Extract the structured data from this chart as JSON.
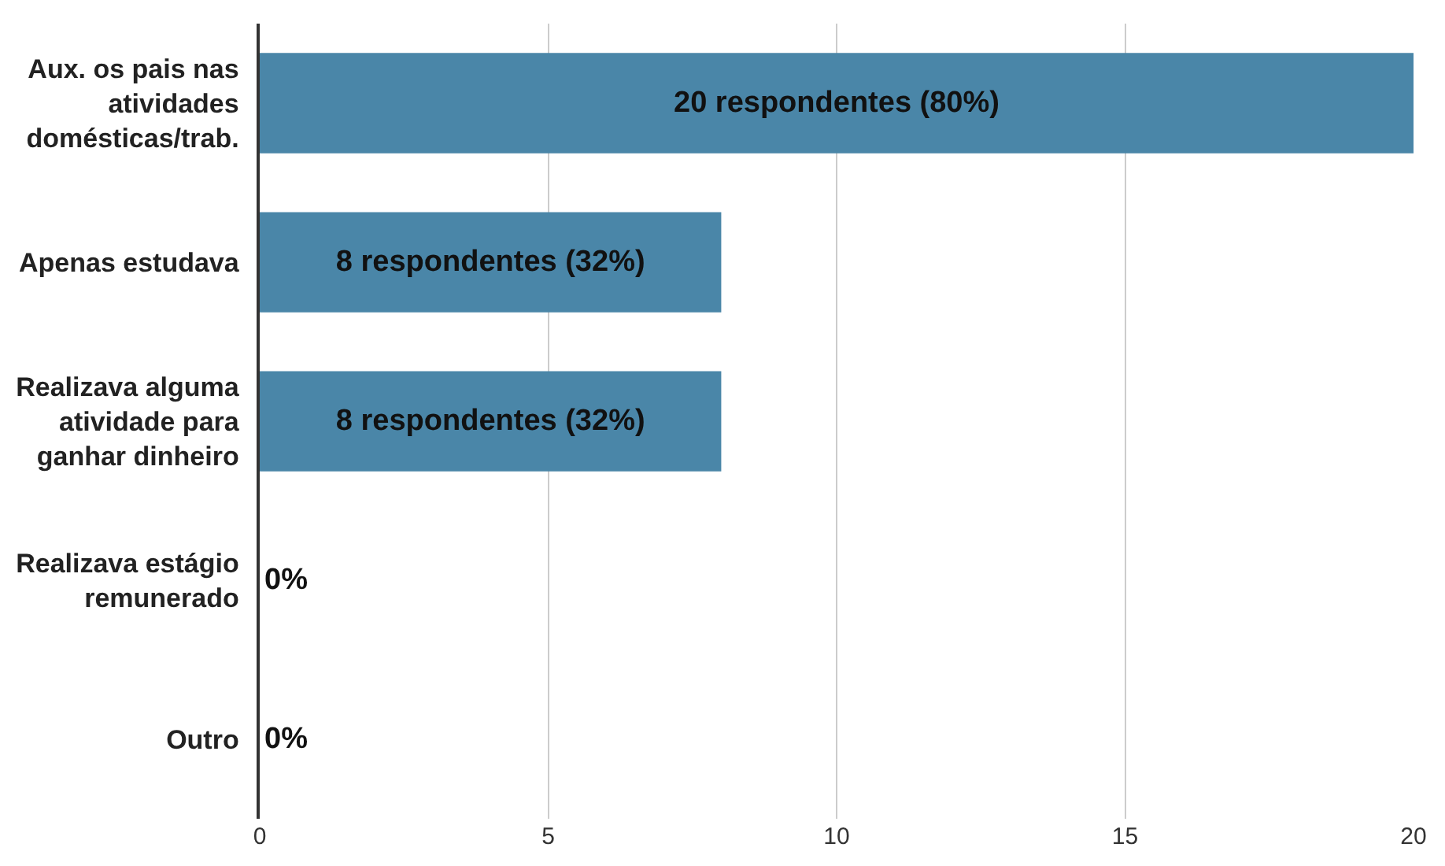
{
  "chart_data": {
    "type": "bar",
    "orientation": "horizontal",
    "categories": [
      "Aux. os pais nas atividades domésticas/trab.",
      "Apenas estudava",
      "Realizava alguma atividade para ganhar dinheiro",
      "Realizava estágio remunerado",
      "Outro"
    ],
    "values": [
      20,
      8,
      8,
      0,
      0
    ],
    "value_labels": [
      "20 respondentes (80%)",
      "8 respondentes (32%)",
      "8 respondentes (32%)",
      "0%",
      "0%"
    ],
    "color": "#4a86a8",
    "xlim": [
      0,
      20
    ],
    "xticks": [
      0,
      5,
      10,
      15,
      20
    ],
    "grid": "x"
  }
}
